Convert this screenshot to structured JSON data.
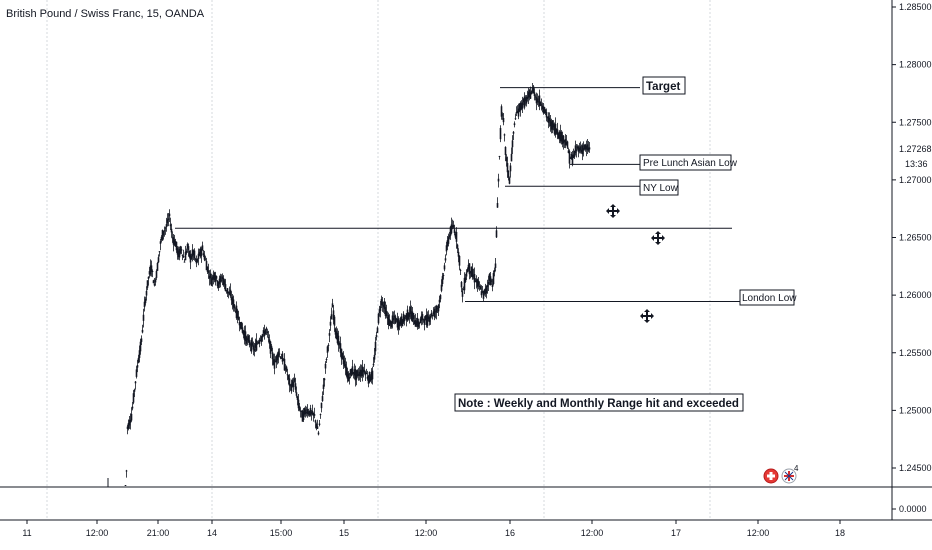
{
  "title": "British Pound / Swiss Franc, 15, OANDA",
  "chart_data": {
    "type": "candlestick",
    "symbol": "British Pound / Swiss Franc",
    "interval": "15",
    "source": "OANDA",
    "y_ticks": [
      "1.28500",
      "1.28000",
      "1.27500",
      "1.27000",
      "1.26500",
      "1.26000",
      "1.25500",
      "1.25000",
      "1.24500"
    ],
    "lower_pane_tick": "0.0000",
    "last_price": "1.27268",
    "countdown": "13:36",
    "x_ticks": [
      "11",
      "12:00",
      "21:00",
      "14",
      "15:00",
      "15",
      "12:00",
      "16",
      "12:00",
      "17",
      "12:00",
      "18"
    ],
    "ylim": [
      1.2415,
      1.2872
    ],
    "ohlc_path": [
      [
        125,
        1.241
      ],
      [
        127,
        1.2485
      ],
      [
        131,
        1.2495
      ],
      [
        135,
        1.2525
      ],
      [
        138,
        1.2545
      ],
      [
        141,
        1.256
      ],
      [
        144,
        1.259
      ],
      [
        148,
        1.2615
      ],
      [
        151,
        1.2625
      ],
      [
        154,
        1.2608
      ],
      [
        157,
        1.2625
      ],
      [
        160,
        1.2645
      ],
      [
        163,
        1.2655
      ],
      [
        166,
        1.266
      ],
      [
        169,
        1.2668
      ],
      [
        172,
        1.265
      ],
      [
        175,
        1.2645
      ],
      [
        178,
        1.2635
      ],
      [
        181,
        1.264
      ],
      [
        184,
        1.263
      ],
      [
        187,
        1.2642
      ],
      [
        190,
        1.2632
      ],
      [
        193,
        1.2637
      ],
      [
        196,
        1.2628
      ],
      [
        199,
        1.2635
      ],
      [
        202,
        1.264
      ],
      [
        205,
        1.263
      ],
      [
        208,
        1.262
      ],
      [
        211,
        1.2613
      ],
      [
        214,
        1.2618
      ],
      [
        218,
        1.261
      ],
      [
        222,
        1.2615
      ],
      [
        226,
        1.2605
      ],
      [
        230,
        1.26
      ],
      [
        234,
        1.259
      ],
      [
        238,
        1.258
      ],
      [
        242,
        1.257
      ],
      [
        246,
        1.2562
      ],
      [
        250,
        1.2558
      ],
      [
        254,
        1.2553
      ],
      [
        258,
        1.256
      ],
      [
        262,
        1.2565
      ],
      [
        266,
        1.257
      ],
      [
        270,
        1.2555
      ],
      [
        274,
        1.254
      ],
      [
        278,
        1.255
      ],
      [
        282,
        1.2545
      ],
      [
        286,
        1.2535
      ],
      [
        290,
        1.252
      ],
      [
        294,
        1.2525
      ],
      [
        298,
        1.2505
      ],
      [
        302,
        1.2495
      ],
      [
        306,
        1.25
      ],
      [
        310,
        1.2498
      ],
      [
        314,
        1.2495
      ],
      [
        318,
        1.248
      ],
      [
        320,
        1.2495
      ],
      [
        323,
        1.252
      ],
      [
        326,
        1.2545
      ],
      [
        329,
        1.2565
      ],
      [
        332,
        1.259
      ],
      [
        335,
        1.257
      ],
      [
        338,
        1.256
      ],
      [
        341,
        1.255
      ],
      [
        344,
        1.254
      ],
      [
        348,
        1.2528
      ],
      [
        352,
        1.2535
      ],
      [
        356,
        1.253
      ],
      [
        360,
        1.2533
      ],
      [
        364,
        1.2535
      ],
      [
        368,
        1.2528
      ],
      [
        372,
        1.253
      ],
      [
        375,
        1.2555
      ],
      [
        378,
        1.258
      ],
      [
        381,
        1.2595
      ],
      [
        384,
        1.259
      ],
      [
        387,
        1.258
      ],
      [
        390,
        1.2575
      ],
      [
        394,
        1.258
      ],
      [
        398,
        1.2575
      ],
      [
        402,
        1.2578
      ],
      [
        406,
        1.2582
      ],
      [
        410,
        1.2585
      ],
      [
        414,
        1.2578
      ],
      [
        418,
        1.2575
      ],
      [
        422,
        1.258
      ],
      [
        426,
        1.2578
      ],
      [
        430,
        1.2582
      ],
      [
        434,
        1.2585
      ],
      [
        438,
        1.259
      ],
      [
        441,
        1.2605
      ],
      [
        444,
        1.2625
      ],
      [
        447,
        1.2645
      ],
      [
        450,
        1.2655
      ],
      [
        453,
        1.266
      ],
      [
        456,
        1.265
      ],
      [
        459,
        1.263
      ],
      [
        462,
        1.26
      ],
      [
        465,
        1.2615
      ],
      [
        468,
        1.2625
      ],
      [
        471,
        1.262
      ],
      [
        474,
        1.2615
      ],
      [
        477,
        1.261
      ],
      [
        480,
        1.2605
      ],
      [
        483,
        1.26
      ],
      [
        486,
        1.2605
      ],
      [
        489,
        1.2615
      ],
      [
        492,
        1.261
      ],
      [
        495,
        1.2625
      ],
      [
        497,
        1.268
      ],
      [
        499,
        1.272
      ],
      [
        501,
        1.276
      ],
      [
        503,
        1.275
      ],
      [
        505,
        1.2725
      ],
      [
        507,
        1.271
      ],
      [
        509,
        1.27
      ],
      [
        511,
        1.272
      ],
      [
        513,
        1.274
      ],
      [
        515,
        1.2755
      ],
      [
        518,
        1.276
      ],
      [
        521,
        1.2765
      ],
      [
        524,
        1.2768
      ],
      [
        527,
        1.277
      ],
      [
        530,
        1.2775
      ],
      [
        533,
        1.2778
      ],
      [
        536,
        1.277
      ],
      [
        539,
        1.2768
      ],
      [
        542,
        1.2765
      ],
      [
        545,
        1.2758
      ],
      [
        548,
        1.2752
      ],
      [
        551,
        1.2748
      ],
      [
        554,
        1.2745
      ],
      [
        557,
        1.2742
      ],
      [
        560,
        1.2738
      ],
      [
        563,
        1.2735
      ],
      [
        566,
        1.2733
      ],
      [
        569,
        1.272
      ],
      [
        572,
        1.2718
      ],
      [
        575,
        1.2725
      ],
      [
        578,
        1.2728
      ],
      [
        581,
        1.2726
      ],
      [
        584,
        1.2728
      ],
      [
        587,
        1.2727
      ],
      [
        590,
        1.2727
      ]
    ],
    "levels": [
      {
        "label": "Target",
        "price": 1.278,
        "x1": 500,
        "x2": 640
      },
      {
        "label": "Pre Lunch Asian Low",
        "price": 1.27135,
        "x1": 570,
        "x2": 640
      },
      {
        "label": "NY Low",
        "price": 1.26945,
        "x1": 505,
        "x2": 640
      },
      {
        "label": "",
        "price": 1.2658,
        "x1": 175,
        "x2": 732
      },
      {
        "label": "London Low",
        "price": 1.25945,
        "x1": 465,
        "x2": 740
      }
    ],
    "note": "Note : Weekly and Monthly Range hit and exceeded"
  }
}
